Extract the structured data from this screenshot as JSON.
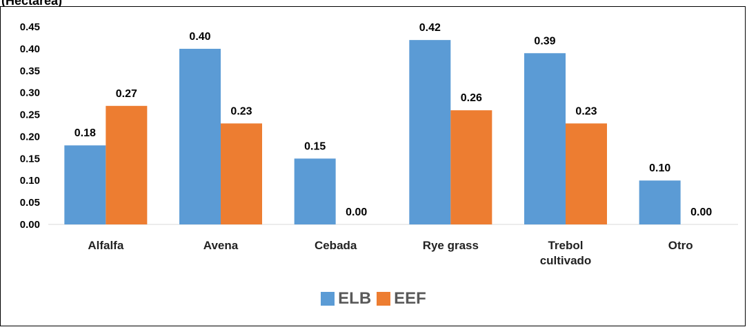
{
  "header_fragment": "(Hectárea)",
  "chart_data": {
    "type": "bar",
    "title": "",
    "xlabel": "",
    "ylabel": "",
    "ylim": [
      0,
      0.45
    ],
    "yticks": [
      "0.00",
      "0.05",
      "0.10",
      "0.15",
      "0.20",
      "0.25",
      "0.30",
      "0.35",
      "0.40",
      "0.45"
    ],
    "grid": false,
    "legend_position": "bottom",
    "categories": [
      [
        "Alfalfa"
      ],
      [
        "Avena"
      ],
      [
        "Cebada"
      ],
      [
        "Rye grass"
      ],
      [
        "Trebol",
        "cultivado"
      ],
      [
        "Otro"
      ]
    ],
    "series": [
      {
        "name": "ELB",
        "color": "#5B9BD5",
        "values": [
          0.18,
          0.4,
          0.15,
          0.42,
          0.39,
          0.1
        ],
        "labels": [
          "0.18",
          "0.40",
          "0.15",
          "0.42",
          "0.39",
          "0.10"
        ]
      },
      {
        "name": "EEF",
        "color": "#ED7D31",
        "values": [
          0.27,
          0.23,
          0.0,
          0.26,
          0.23,
          0.0
        ],
        "labels": [
          "0.27",
          "0.23",
          "0.00",
          "0.26",
          "0.23",
          "0.00"
        ]
      }
    ]
  }
}
